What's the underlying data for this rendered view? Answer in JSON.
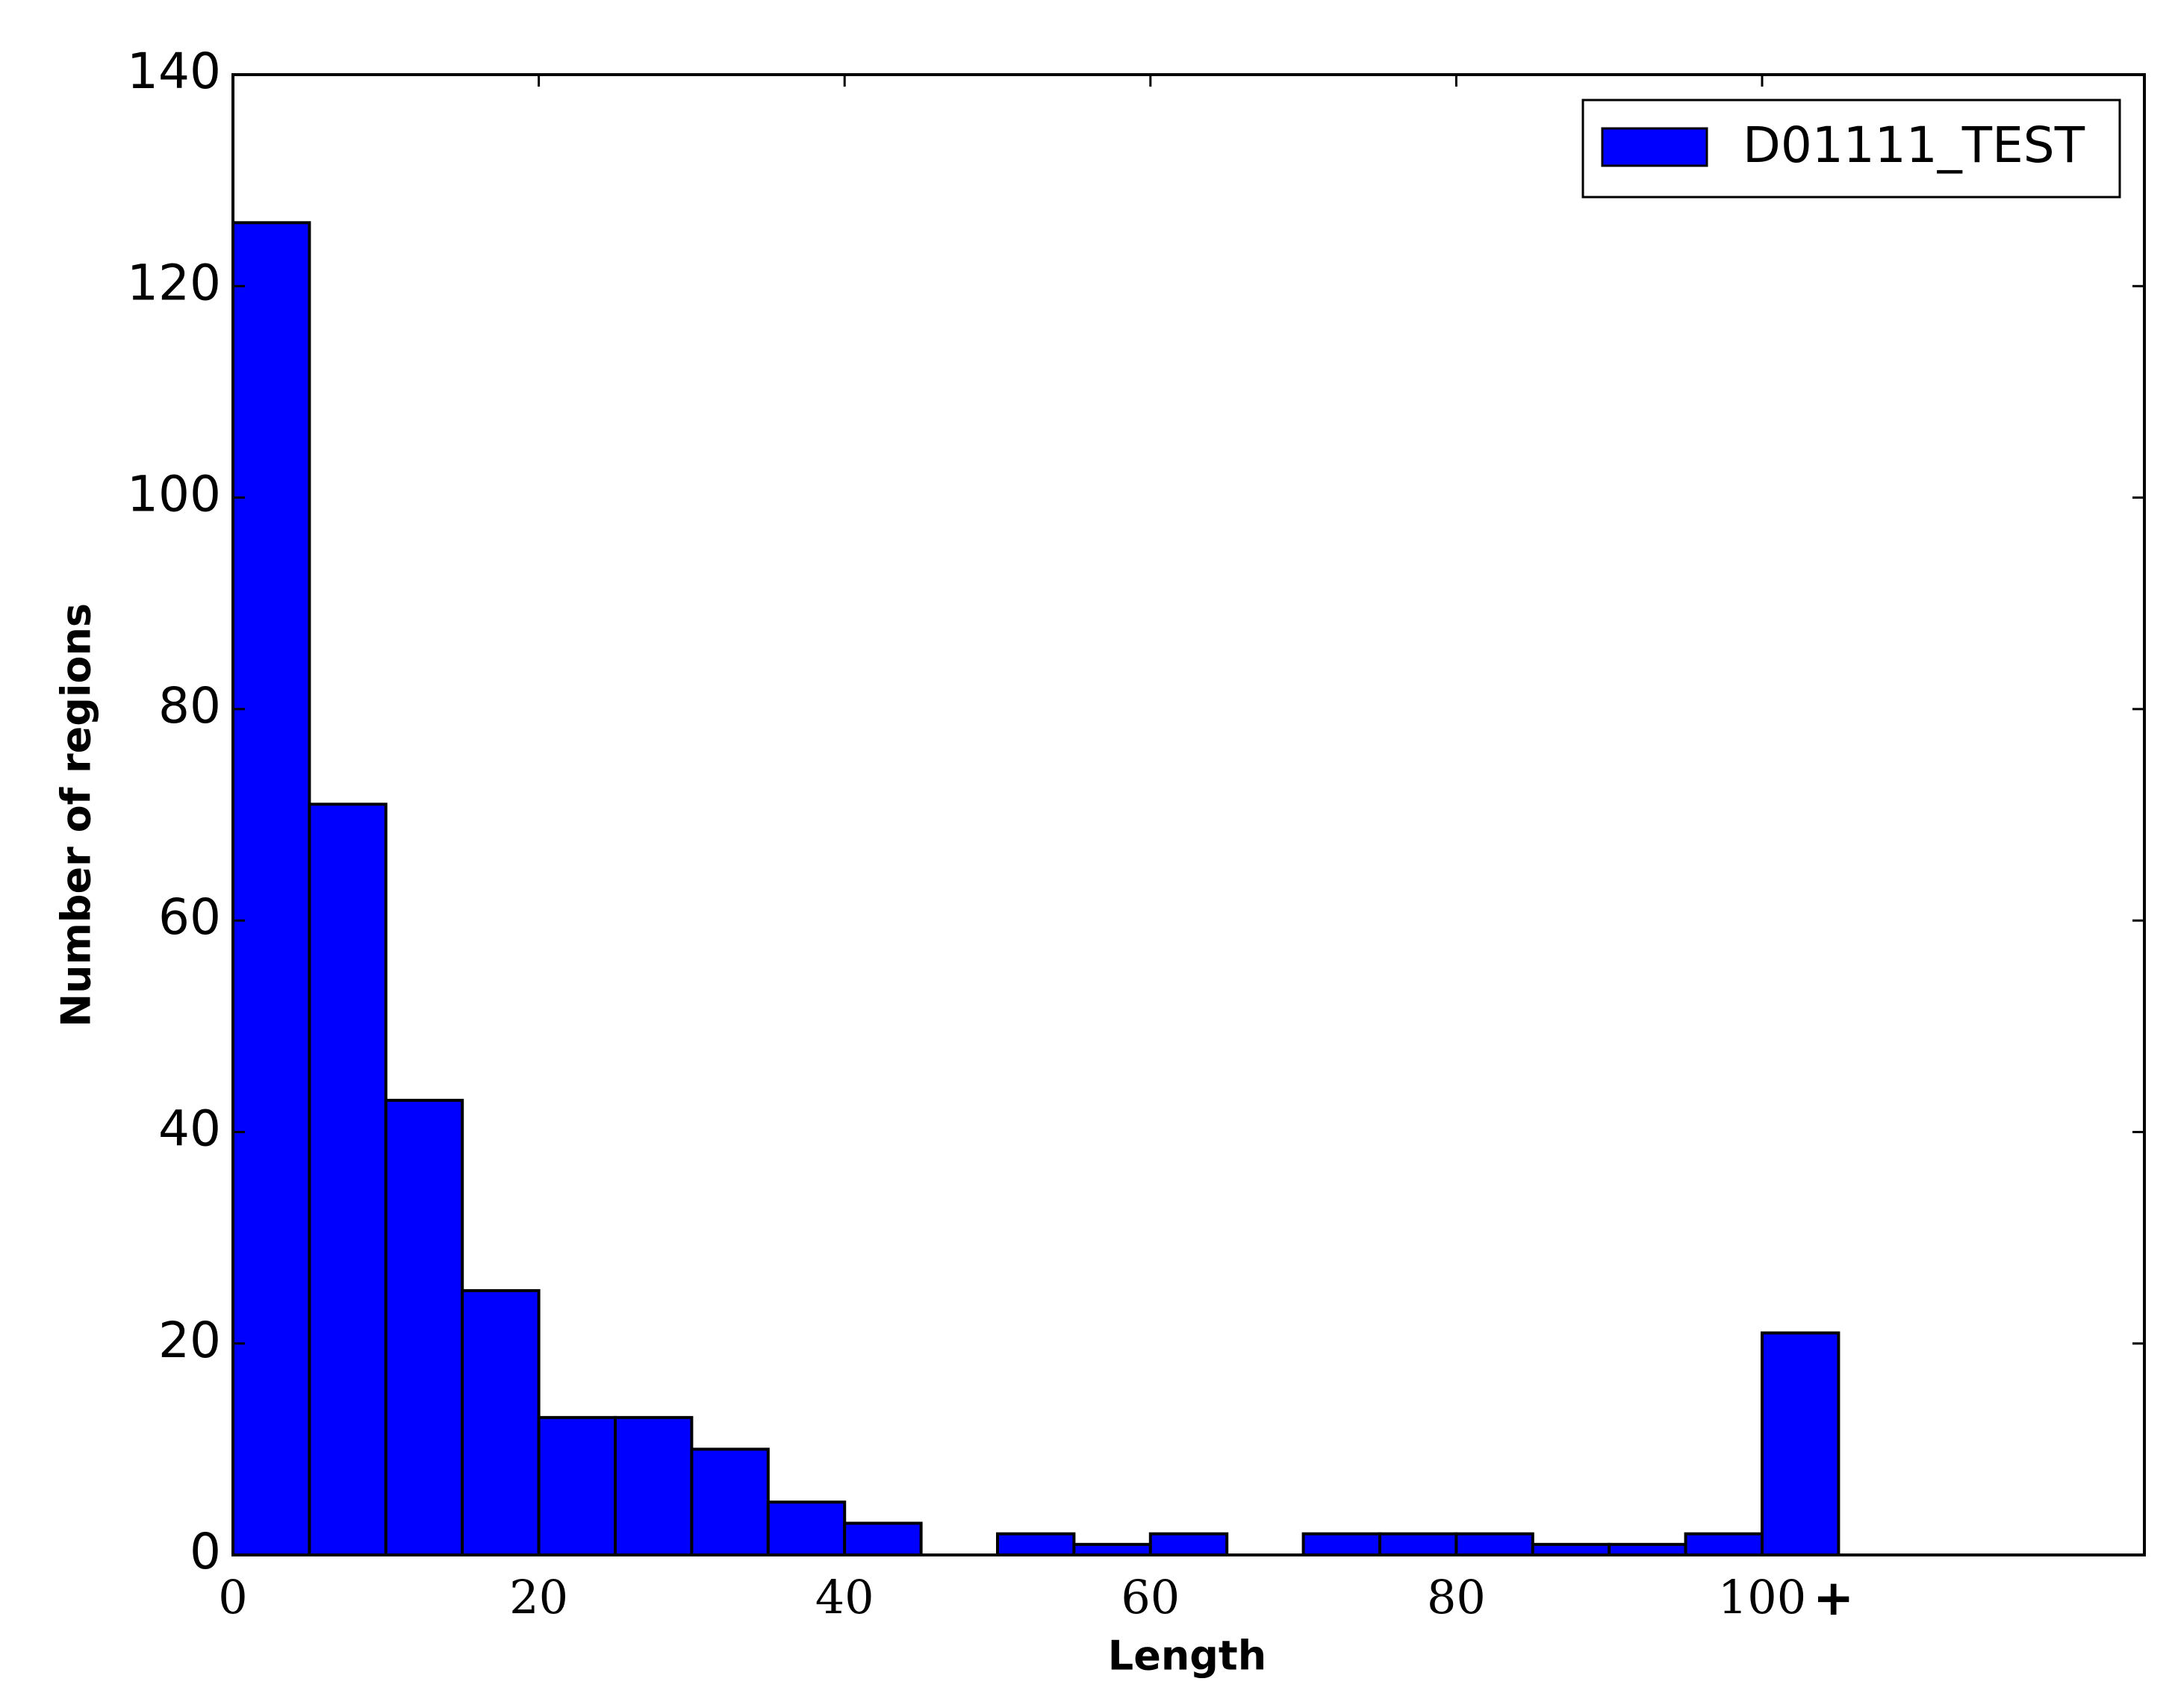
{
  "chart_data": {
    "type": "histogram",
    "xlabel": "Length",
    "ylabel": "Number of regions",
    "bins": [
      0,
      5,
      10,
      15,
      20,
      25,
      30,
      35,
      40,
      45,
      50,
      55,
      60,
      65,
      70,
      75,
      80,
      85,
      90,
      95,
      100,
      105
    ],
    "series": [
      {
        "name": "D01111_TEST",
        "color": "#0000ff",
        "values": [
          126,
          71,
          43,
          25,
          13,
          13,
          10,
          5,
          3,
          0,
          2,
          1,
          2,
          0,
          2,
          2,
          2,
          1,
          1,
          2,
          21
        ]
      }
    ],
    "xlim": [
      0,
      125
    ],
    "ylim": [
      0,
      140
    ],
    "xticks": [
      0,
      20,
      40,
      60,
      80,
      100
    ],
    "yticks": [
      0,
      20,
      40,
      60,
      80,
      100,
      120,
      140
    ],
    "annotation": "+",
    "legend": "upper right"
  }
}
